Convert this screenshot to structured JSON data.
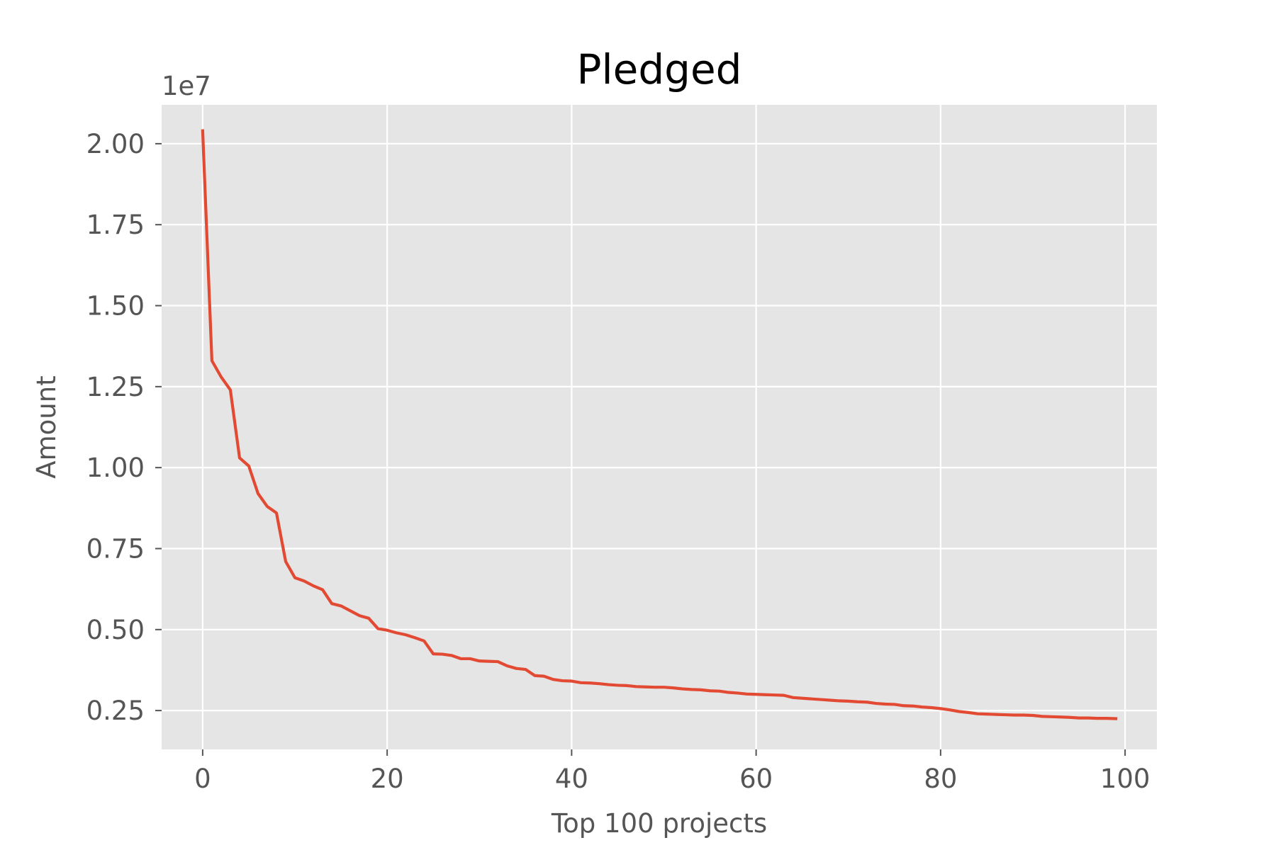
{
  "chart_data": {
    "type": "line",
    "title": "Pledged",
    "xlabel": "Top 100 projects",
    "ylabel": "Amount",
    "y_offset_label": "1e7",
    "xlim": [
      -4.45,
      103.45
    ],
    "ylim": [
      0.13,
      2.12
    ],
    "x_ticks": [
      0,
      20,
      40,
      60,
      80,
      100
    ],
    "x_tick_labels": [
      "0",
      "20",
      "40",
      "60",
      "80",
      "100"
    ],
    "y_ticks": [
      0.25,
      0.5,
      0.75,
      1.0,
      1.25,
      1.5,
      1.75,
      2.0
    ],
    "y_tick_labels": [
      "0.25",
      "0.50",
      "0.75",
      "1.00",
      "1.25",
      "1.50",
      "1.75",
      "2.00"
    ],
    "grid": true,
    "line_color": "#E24A33",
    "background_color": "#E5E5E5",
    "series": [
      {
        "values": [
          2.04,
          1.33,
          1.28,
          1.24,
          1.03,
          1.005,
          0.92,
          0.88,
          0.86,
          0.71,
          0.66,
          0.65,
          0.635,
          0.623,
          0.58,
          0.573,
          0.558,
          0.543,
          0.535,
          0.503,
          0.498,
          0.49,
          0.484,
          0.475,
          0.465,
          0.425,
          0.424,
          0.42,
          0.41,
          0.41,
          0.403,
          0.402,
          0.401,
          0.388,
          0.38,
          0.377,
          0.358,
          0.356,
          0.346,
          0.342,
          0.341,
          0.336,
          0.335,
          0.333,
          0.33,
          0.328,
          0.327,
          0.324,
          0.323,
          0.322,
          0.322,
          0.32,
          0.317,
          0.315,
          0.314,
          0.311,
          0.31,
          0.306,
          0.304,
          0.301,
          0.3,
          0.299,
          0.298,
          0.297,
          0.29,
          0.288,
          0.286,
          0.284,
          0.282,
          0.28,
          0.279,
          0.277,
          0.276,
          0.272,
          0.27,
          0.269,
          0.265,
          0.264,
          0.261,
          0.259,
          0.256,
          0.252,
          0.247,
          0.244,
          0.24,
          0.239,
          0.238,
          0.237,
          0.236,
          0.236,
          0.235,
          0.232,
          0.231,
          0.23,
          0.229,
          0.227,
          0.227,
          0.226,
          0.226,
          0.225
        ]
      }
    ]
  }
}
